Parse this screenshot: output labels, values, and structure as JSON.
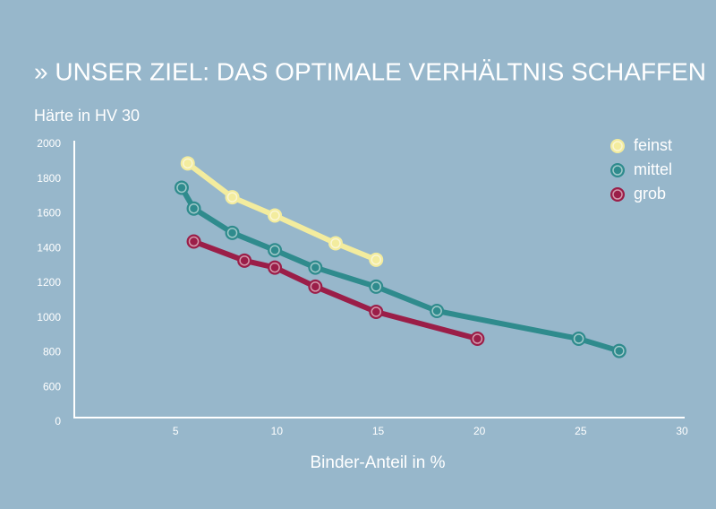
{
  "chart_data": {
    "type": "line",
    "title": "» UNSER ZIEL: DAS OPTIMALE VERHÄLTNIS SCHAFFEN",
    "y_label": "Härte in HV 30",
    "x_label": "Binder-Anteil in %",
    "xlim": [
      0,
      30
    ],
    "xticks": [
      5,
      10,
      15,
      20,
      25,
      30
    ],
    "ylim": [
      0,
      2000
    ],
    "yticks": [
      0,
      600,
      800,
      1000,
      1200,
      1400,
      1600,
      1800,
      2000
    ],
    "legend": "top-right",
    "series": [
      {
        "name": "feinst",
        "color": "#f3ec9e",
        "x": [
          5.6,
          7.8,
          9.9,
          12.9,
          14.9
        ],
        "values": [
          1890,
          1695,
          1590,
          1430,
          1335
        ]
      },
      {
        "name": "mittel",
        "color": "#2f8b8d",
        "x": [
          5.3,
          5.9,
          7.8,
          9.9,
          11.9,
          14.9,
          17.9,
          24.9,
          26.9
        ],
        "values": [
          1750,
          1630,
          1490,
          1390,
          1290,
          1180,
          1040,
          880,
          810
        ]
      },
      {
        "name": "grob",
        "color": "#9b1e48",
        "x": [
          5.9,
          8.4,
          9.9,
          11.9,
          14.9,
          19.9
        ],
        "values": [
          1440,
          1330,
          1290,
          1180,
          1035,
          880
        ]
      }
    ]
  }
}
